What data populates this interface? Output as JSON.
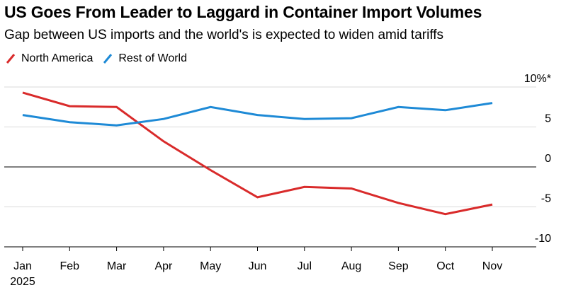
{
  "title": "US Goes From Leader to Laggard in Container Import Volumes",
  "subtitle": "Gap between US imports and the world's is expected to widen amid tariffs",
  "colors": {
    "north_america": "#d92b2b",
    "rest_of_world": "#1e8ad6",
    "grid": "#d9d9d9",
    "zero": "#000000"
  },
  "chart_data": {
    "type": "line",
    "title": "US Goes From Leader to Laggard in Container Import Volumes",
    "subtitle": "Gap between US imports and the world's is expected to widen amid tariffs",
    "categories": [
      "Jan",
      "Feb",
      "Mar",
      "Apr",
      "May",
      "Jun",
      "Jul",
      "Aug",
      "Sep",
      "Oct",
      "Nov"
    ],
    "x_year_label": "2025",
    "series": [
      {
        "name": "North America",
        "color": "#d92b2b",
        "values": [
          9.3,
          7.6,
          7.5,
          3.2,
          -0.4,
          -3.8,
          -2.5,
          -2.7,
          -4.5,
          -5.9,
          -4.7
        ]
      },
      {
        "name": "Rest of World",
        "color": "#1e8ad6",
        "values": [
          6.5,
          5.6,
          5.2,
          6.0,
          7.5,
          6.5,
          6.0,
          6.1,
          7.5,
          7.1,
          8.0
        ]
      }
    ],
    "yticks": [
      10,
      5,
      0,
      -5,
      -10
    ],
    "ytick_labels": [
      "10%*",
      "5",
      "0",
      "-5",
      "-10"
    ],
    "ylim": [
      -10,
      10
    ],
    "xlabel": "",
    "ylabel": "",
    "grid": true,
    "legend_position": "top-left"
  }
}
